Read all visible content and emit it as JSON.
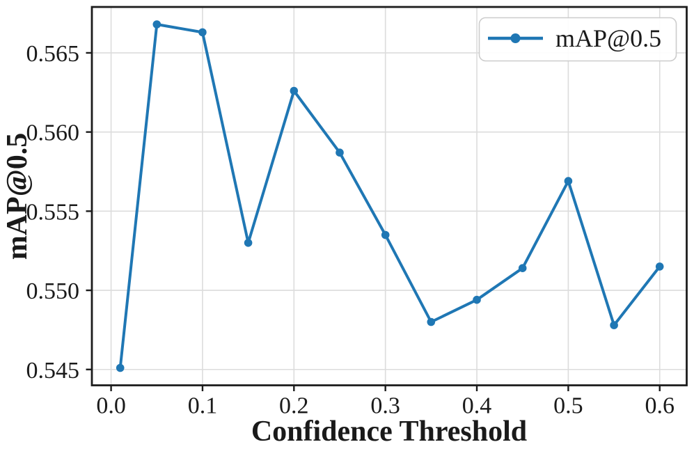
{
  "chart_data": {
    "type": "line",
    "title": "",
    "xlabel": "Confidence Threshold",
    "ylabel": "mAP@0.5",
    "series": [
      {
        "name": "mAP@0.5",
        "x": [
          0.01,
          0.05,
          0.1,
          0.15,
          0.2,
          0.25,
          0.3,
          0.35,
          0.4,
          0.45,
          0.5,
          0.55,
          0.6
        ],
        "y": [
          0.5451,
          0.5668,
          0.5663,
          0.553,
          0.5626,
          0.5587,
          0.5535,
          0.548,
          0.5494,
          0.5514,
          0.5569,
          0.5478,
          0.5515
        ],
        "color": "#1f77b4",
        "marker": "circle"
      }
    ],
    "xlim": [
      -0.021,
      0.6295
    ],
    "ylim": [
      0.544,
      0.5679
    ],
    "xticks": {
      "values": [
        0.0,
        0.1,
        0.2,
        0.3,
        0.4,
        0.5,
        0.6
      ],
      "labels": [
        "0.0",
        "0.1",
        "0.2",
        "0.3",
        "0.4",
        "0.5",
        "0.6"
      ]
    },
    "yticks": {
      "values": [
        0.545,
        0.55,
        0.555,
        0.56,
        0.565
      ],
      "labels": [
        "0.545",
        "0.550",
        "0.555",
        "0.560",
        "0.565"
      ]
    },
    "grid": true,
    "legend": {
      "label": "mAP@0.5",
      "position": "upper right"
    },
    "colors": {
      "line": "#1f77b4",
      "grid": "#dcdcdc",
      "spine": "#1c1c1c",
      "text": "#1a1a1a",
      "legend_border": "#cccccc",
      "background": "#ffffff"
    }
  }
}
